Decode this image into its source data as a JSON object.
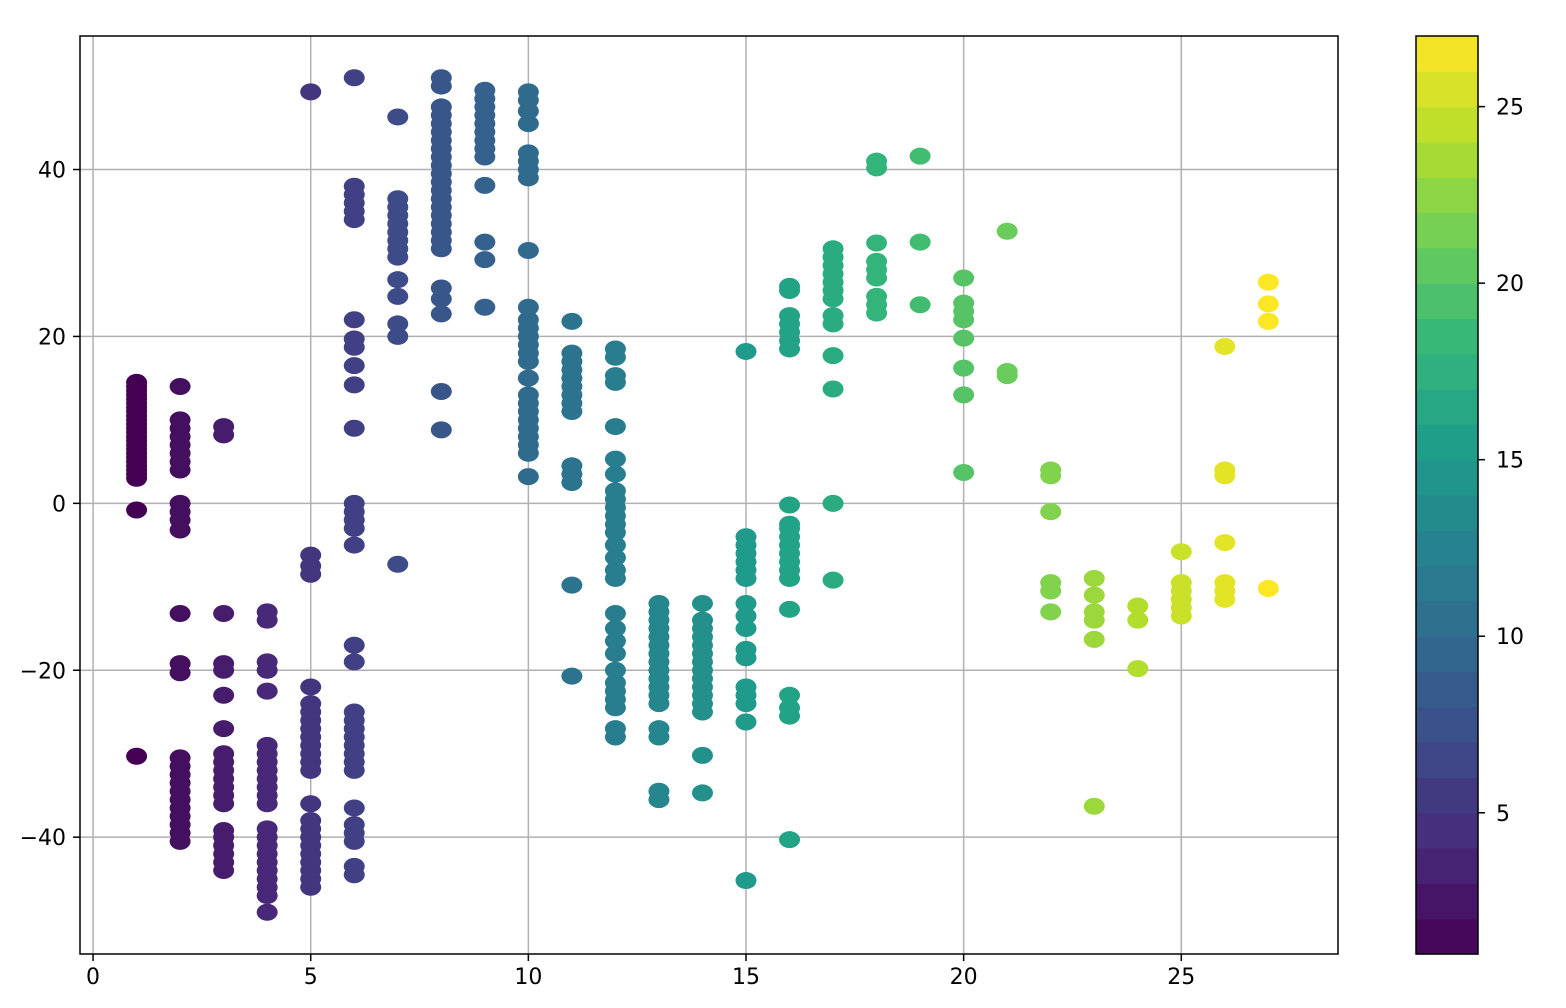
{
  "chart_data": {
    "type": "scatter",
    "title": "",
    "xlabel": "",
    "ylabel": "",
    "xlim": [
      -0.3,
      28.6
    ],
    "ylim": [
      -54,
      56
    ],
    "grid": true,
    "x_ticks": [
      0,
      5,
      10,
      15,
      20,
      25
    ],
    "y_ticks": [
      -40,
      -20,
      0,
      20,
      40
    ],
    "x_tick_labels": [
      "0",
      "5",
      "10",
      "15",
      "20",
      "25"
    ],
    "y_tick_labels": [
      "−40",
      "−20",
      "0",
      "20",
      "40"
    ],
    "colormap": "viridis",
    "colorbar": {
      "range": [
        1,
        27
      ],
      "ticks": [
        5,
        10,
        15,
        20,
        25
      ],
      "tick_labels": [
        "5",
        "10",
        "15",
        "20",
        "25"
      ],
      "stops": [
        "#440154",
        "#482878",
        "#3e4989",
        "#31688e",
        "#26828e",
        "#1f9e89",
        "#35b779",
        "#6ece58",
        "#b5de2b",
        "#fde725"
      ]
    },
    "color_by": "x",
    "columns": [
      {
        "x": 1,
        "y": [
          -30.3,
          -0.8,
          3,
          3.5,
          4,
          4.5,
          5,
          5.5,
          6,
          6.5,
          7,
          7.5,
          8,
          8.5,
          9,
          9.5,
          10,
          10.5,
          11,
          11.5,
          12,
          12.5,
          13,
          13.5,
          14,
          14.5
        ]
      },
      {
        "x": 2,
        "y": [
          -40.5,
          -39.5,
          -38.5,
          -37.5,
          -36.5,
          -35.5,
          -34.5,
          -33.5,
          -32.5,
          -31.5,
          -30.5,
          -20.3,
          -19.2,
          -13.2,
          -3.2,
          -2,
          -1,
          0,
          4,
          5,
          6,
          7,
          8,
          9,
          10,
          14
        ]
      },
      {
        "x": 3,
        "y": [
          -44,
          -43,
          -42,
          -41,
          -40,
          -39.2,
          -36,
          -35,
          -34,
          -33,
          -32,
          -31,
          -30,
          -27,
          -23,
          -20,
          -19.2,
          -13.2,
          8.2,
          9.2
        ]
      },
      {
        "x": 4,
        "y": [
          -49,
          -47,
          -46,
          -45,
          -44,
          -43,
          -42,
          -41,
          -40,
          -39,
          -36,
          -35,
          -34,
          -33,
          -32,
          -31,
          -30,
          -29,
          -22.5,
          -20,
          -19,
          -14,
          -13
        ]
      },
      {
        "x": 5,
        "y": [
          -46,
          -45,
          -44,
          -43,
          -42,
          -41,
          -40,
          -39,
          -38,
          -36,
          -32,
          -31,
          -30,
          -29,
          -28,
          -27,
          -26,
          -25,
          -24,
          -22,
          -8.5,
          -7.5,
          -6.2,
          49.3
        ]
      },
      {
        "x": 6,
        "y": [
          -44.5,
          -43.5,
          -40.5,
          -39.5,
          -38.5,
          -36.5,
          -32,
          -31,
          -30,
          -29,
          -28,
          -27,
          -26,
          -25,
          -19,
          -17,
          -5,
          -3,
          -2,
          -1,
          0,
          9,
          14.2,
          16.5,
          18.7,
          19.7,
          22,
          34,
          35,
          36,
          37,
          38,
          51
        ]
      },
      {
        "x": 7,
        "y": [
          -7.3,
          20,
          21.5,
          24.8,
          26.8,
          29.5,
          30.5,
          31.5,
          32.5,
          33.5,
          34.5,
          35.5,
          36.5,
          46.3
        ]
      },
      {
        "x": 8,
        "y": [
          8.8,
          13.4,
          22.7,
          24.5,
          25.8,
          30.5,
          31.5,
          32.5,
          33.5,
          34.5,
          35.5,
          36.5,
          37.5,
          38.5,
          39.5,
          40.5,
          41.5,
          42.5,
          43.5,
          44.5,
          45.5,
          46.5,
          47.5,
          50,
          51
        ]
      },
      {
        "x": 9,
        "y": [
          23.5,
          29.2,
          31.3,
          38.1,
          41.5,
          42.5,
          43.5,
          44.5,
          45.5,
          46.5,
          47.5,
          48.5,
          49.5
        ]
      },
      {
        "x": 10,
        "y": [
          3.2,
          6,
          7,
          8,
          9,
          10,
          11,
          12,
          13,
          15,
          17,
          18,
          19,
          20,
          21,
          22,
          23.5,
          30.3,
          39,
          40,
          41,
          42,
          45.5,
          47,
          48.3,
          49.3
        ]
      },
      {
        "x": 11,
        "y": [
          -20.7,
          -9.8,
          2.5,
          3.5,
          4.5,
          11,
          12,
          13,
          14,
          15,
          16,
          17,
          18,
          21.8
        ]
      },
      {
        "x": 12,
        "y": [
          -28,
          -27,
          -24.5,
          -23.5,
          -22.5,
          -21.5,
          -20,
          -18,
          -16.5,
          -15,
          -13.2,
          -9,
          -8,
          -6.5,
          -5,
          -3.5,
          -2.5,
          -1.5,
          -0.5,
          0.5,
          1.5,
          3.5,
          5.3,
          9.2,
          14.5,
          15.3,
          17.5,
          18.5
        ]
      },
      {
        "x": 13,
        "y": [
          -35.5,
          -34.5,
          -28,
          -27,
          -24,
          -23,
          -22,
          -21,
          -20,
          -19,
          -18,
          -17,
          -16,
          -15,
          -14,
          -13,
          -12
        ]
      },
      {
        "x": 14,
        "y": [
          -34.7,
          -30.2,
          -25,
          -24,
          -23,
          -22,
          -21,
          -20,
          -19,
          -18,
          -17,
          -16,
          -15,
          -14,
          -12
        ]
      },
      {
        "x": 15,
        "y": [
          -45.2,
          -26.2,
          -24,
          -23,
          -22,
          -18.5,
          -17.5,
          -15,
          -13.5,
          -12,
          -9,
          -8,
          -7,
          -6,
          -5,
          -4,
          18.2
        ]
      },
      {
        "x": 16,
        "y": [
          -40.3,
          -25.5,
          -24.5,
          -23,
          -12.7,
          -9,
          -8,
          -7,
          -6,
          -5,
          -4,
          -3,
          -2.5,
          -0.2,
          18.5,
          19.5,
          20.5,
          21.5,
          22.5,
          25.5,
          26
        ]
      },
      {
        "x": 17,
        "y": [
          -9.2,
          0,
          13.7,
          17.7,
          21.5,
          22.5,
          24.5,
          25.5,
          26.5,
          27.5,
          28.5,
          29.5,
          30.5
        ]
      },
      {
        "x": 18,
        "y": [
          22.8,
          23.8,
          24.8,
          27,
          28,
          29,
          31.2,
          40.2,
          41
        ]
      },
      {
        "x": 19,
        "y": [
          23.8,
          31.3,
          41.6
        ]
      },
      {
        "x": 20,
        "y": [
          3.7,
          13,
          16.2,
          19.8,
          22,
          23,
          24,
          27
        ]
      },
      {
        "x": 21,
        "y": [
          15.3,
          15.8,
          32.6
        ]
      },
      {
        "x": 22,
        "y": [
          -13,
          -10.5,
          -9.5,
          -1,
          3.3,
          4
        ]
      },
      {
        "x": 23,
        "y": [
          -36.3,
          -16.3,
          -14,
          -13,
          -11,
          -9
        ]
      },
      {
        "x": 24,
        "y": [
          -19.8,
          -14,
          -12.3
        ]
      },
      {
        "x": 25,
        "y": [
          -13.5,
          -12.5,
          -11.5,
          -10.5,
          -9.5,
          -5.8
        ]
      },
      {
        "x": 26,
        "y": [
          -11.5,
          -10.5,
          -9.5,
          -4.7,
          3.3,
          4,
          18.8
        ]
      },
      {
        "x": 27,
        "y": [
          -10.2,
          21.8,
          23.9,
          26.5
        ]
      }
    ]
  }
}
